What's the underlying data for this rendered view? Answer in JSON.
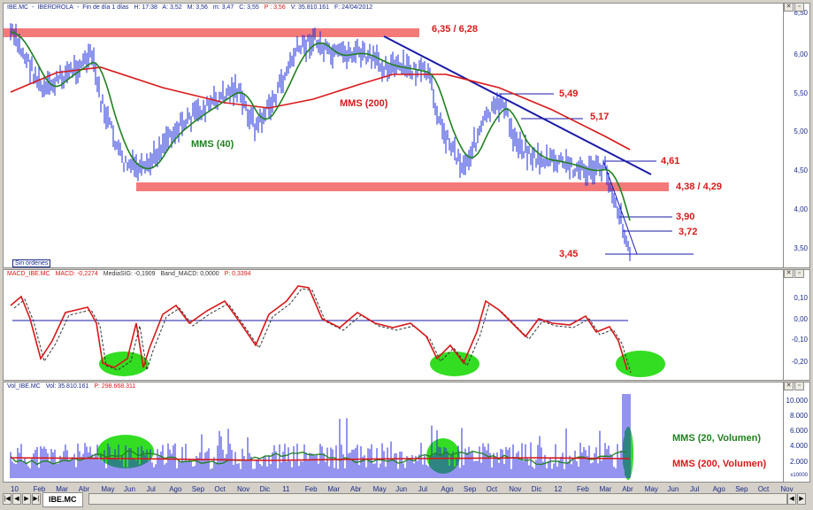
{
  "price_header": {
    "symbol": "IBE.MC",
    "name": "IBERDROLA",
    "period": "Fin de día 1 días",
    "time": "H: 17:38",
    "open": "A: 3,52",
    "high": "M: 3,56",
    "low": "m: 3,47",
    "close": "C: 3,55",
    "last": "P : 3,56",
    "volume": "V: 35.810.161",
    "fecha": "F: 24/04/2012"
  },
  "price_axis_labels": [
    "6,50",
    "6,00",
    "5,50",
    "5,00",
    "4,50",
    "4,00",
    "3,50"
  ],
  "annotations": {
    "top_band": "6,35 / 6,28",
    "bottom_band": "4,38 / 4,29",
    "l549": "5,49",
    "l517": "5,17",
    "l461": "4,61",
    "l390": "3,90",
    "l372": "3,72",
    "l345": "3,45",
    "mms200": "MMS (200)",
    "mms40": "MMS (40)"
  },
  "orders_badge": "Sin órdenes",
  "macd_header": {
    "name": "MACD_IBE.MC",
    "macd": "MACD: -0,2274",
    "signal": "MediaSIG: -0,1909",
    "band": "Band_MACD: 0,0000",
    "p": "P: 0,3394"
  },
  "macd_axis_labels": [
    "0,10",
    "0,00",
    "-0,10",
    "-0,20"
  ],
  "vol_header": {
    "name": "Vol_IBE.MC",
    "vol": "Vol: 35.810.161",
    "p": "P: 298.668.311"
  },
  "vol_axis_labels": [
    "10.000",
    "8.000",
    "6.000",
    "4.000",
    "2.000"
  ],
  "vol_axis_unit": "x10000",
  "vol_legend": {
    "mms20": "MMS (20, Volumen)",
    "mms200": "MMS (200, Volumen)"
  },
  "months": [
    "10",
    "Feb",
    "Mar",
    "Abr",
    "May",
    "Jun",
    "Jul",
    "Ago",
    "Sep",
    "Oct",
    "Nov",
    "Dic",
    "11",
    "Feb",
    "Mar",
    "Abr",
    "May",
    "Jun",
    "Jul",
    "Ago",
    "Sep",
    "Oct",
    "Nov",
    "Dic",
    "12",
    "Feb",
    "Mar",
    "Abr",
    "May",
    "Jun",
    "Jul",
    "Ago",
    "Sep",
    "Oct",
    "Nov"
  ],
  "tab_label": "IBE.MC",
  "colors": {
    "price": "#1a2ad8",
    "mms200": "#d81818",
    "mms40": "#208020",
    "band": "#f47a7a",
    "trend": "#1a1aa8",
    "highlight": "#33dd22",
    "annotation": "#d81818"
  }
}
